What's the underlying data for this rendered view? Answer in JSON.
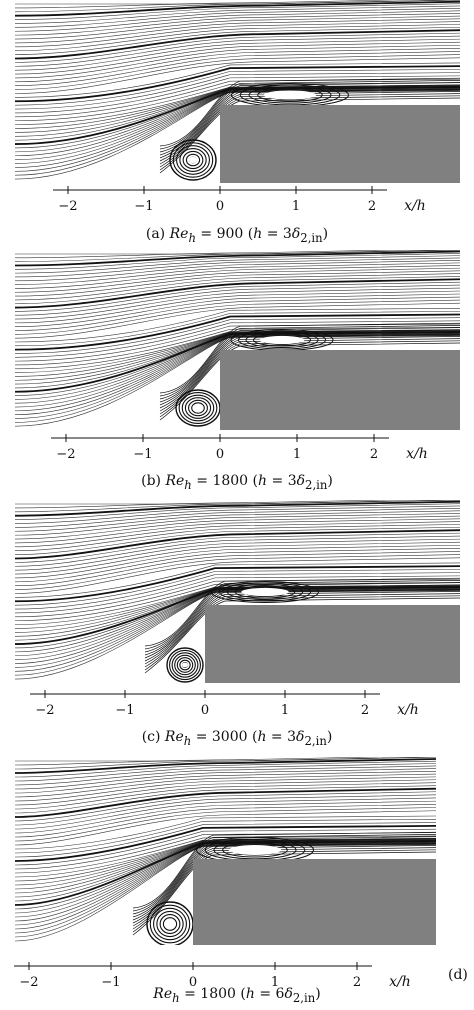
{
  "colors": {
    "step": "#808080",
    "line": "#111111",
    "background": "#ffffff"
  },
  "axis": {
    "label": "x/h"
  },
  "panels": [
    {
      "id": "a",
      "caption_prefix": "(a)",
      "Re": "900",
      "h_ratio": "3",
      "ticks": [
        "−2",
        "−1",
        "0",
        "1",
        "2"
      ],
      "tick_values": [
        -2,
        -1,
        0,
        1,
        2
      ]
    },
    {
      "id": "b",
      "caption_prefix": "(b)",
      "Re": "1800",
      "h_ratio": "3",
      "ticks": [
        "−2",
        "−1",
        "0",
        "1",
        "2"
      ],
      "tick_values": [
        -2,
        -1,
        0,
        1,
        2
      ]
    },
    {
      "id": "c",
      "caption_prefix": "(c)",
      "Re": "3000",
      "h_ratio": "3",
      "ticks": [
        "−2",
        "−1",
        "0",
        "1",
        "2"
      ],
      "tick_values": [
        -2,
        -1,
        0,
        1,
        2
      ]
    },
    {
      "id": "d",
      "caption_prefix": "(d)",
      "Re": "1800",
      "h_ratio": "6",
      "ticks": [
        "−2",
        "−1",
        "0",
        "1",
        "2"
      ],
      "tick_values": [
        -2,
        -1,
        0,
        1,
        2
      ]
    }
  ],
  "caption_parts": {
    "re_sym": "Re",
    "re_sub": "h",
    "eq": " = ",
    "h_open": " (h = ",
    "delta": "δ",
    "delta_sub": "2,in",
    "close": ")"
  }
}
